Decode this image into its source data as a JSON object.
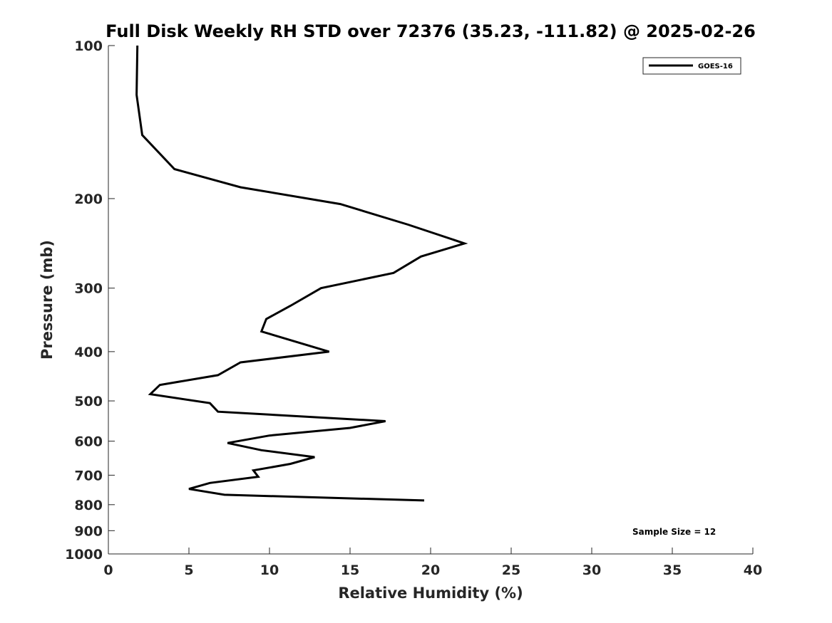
{
  "chart_data": {
    "type": "line",
    "title": "Full Disk Weekly RH STD over 72376 (35.23, -111.82) @ 2025-02-26",
    "xlabel": "Relative Humidity (%)",
    "ylabel": "Pressure (mb)",
    "xlim": [
      0,
      40
    ],
    "ylim": [
      100,
      1000
    ],
    "y_scale": "log",
    "y_reversed": true,
    "grid": false,
    "legend_position": "top-right",
    "x_ticks": [
      0,
      5,
      10,
      15,
      20,
      25,
      30,
      35,
      40
    ],
    "y_ticks": [
      100,
      200,
      300,
      400,
      500,
      600,
      700,
      800,
      900,
      1000
    ],
    "annotation": "Sample Size = 12",
    "series": [
      {
        "name": "GOES-16",
        "color": "#000000",
        "x": [
          1.8,
          1.75,
          2.1,
          4.1,
          8.2,
          14.4,
          18.6,
          22.1,
          19.4,
          17.7,
          13.2,
          11.3,
          9.8,
          9.5,
          13.7,
          8.2,
          6.8,
          3.2,
          2.6,
          6.3,
          6.8,
          17.2,
          15.0,
          10.0,
          7.4,
          9.5,
          12.8,
          11.3,
          9.0,
          9.3,
          6.3,
          5.0,
          7.2,
          19.6
        ],
        "y": [
          100,
          125,
          150,
          175,
          190,
          205,
          225,
          245,
          260,
          280,
          300,
          325,
          345,
          365,
          400,
          420,
          445,
          465,
          485,
          505,
          525,
          548,
          565,
          585,
          605,
          625,
          645,
          665,
          685,
          705,
          725,
          745,
          765,
          785
        ]
      }
    ]
  }
}
